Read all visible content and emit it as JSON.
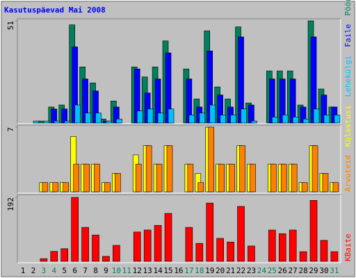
{
  "chart_data": [
    {
      "type": "bar",
      "title": "Kasutuspäevad Mai 2008",
      "ylim": [
        0,
        51
      ],
      "yticks": [
        51
      ],
      "series": [
        {
          "name": "Pöördumisi",
          "color": "#00805c",
          "values": [
            0,
            0,
            1,
            8,
            9,
            49,
            28,
            20,
            2,
            11,
            0,
            28,
            23,
            28,
            41,
            0,
            27,
            12,
            46,
            18,
            12,
            48,
            10,
            0,
            26,
            26,
            26,
            9,
            51,
            17,
            8
          ]
        },
        {
          "name": "Faile",
          "color": "#0000ff",
          "values": [
            0,
            0,
            0,
            7,
            7,
            38,
            22,
            16,
            1,
            8,
            0,
            27,
            15,
            22,
            35,
            0,
            22,
            8,
            36,
            14,
            8,
            43,
            9,
            0,
            22,
            22,
            22,
            8,
            43,
            14,
            8
          ]
        },
        {
          "name": "Lehekülgi",
          "color": "#00c0ff",
          "values": [
            0,
            1,
            1,
            1,
            1,
            9,
            5,
            5,
            1,
            2,
            0,
            6,
            7,
            5,
            7,
            0,
            4,
            5,
            9,
            4,
            4,
            7,
            1,
            0,
            3,
            4,
            3,
            2,
            7,
            4,
            4
          ]
        }
      ]
    },
    {
      "type": "bar",
      "ylim": [
        0,
        7
      ],
      "yticks": [
        7
      ],
      "series": [
        {
          "name": "Külastusi",
          "color": "#ffff00",
          "values": [
            0,
            0,
            1,
            1,
            1,
            6,
            3,
            3,
            1,
            2,
            0,
            4,
            5,
            3,
            5,
            0,
            3,
            2,
            7,
            3,
            3,
            5,
            3,
            0,
            3,
            3,
            3,
            1,
            5,
            2,
            1
          ]
        },
        {
          "name": "Arvuteid",
          "color": "#ff8000",
          "values": [
            0,
            0,
            1,
            1,
            1,
            3,
            3,
            3,
            1,
            2,
            0,
            3,
            5,
            3,
            5,
            0,
            3,
            1,
            7,
            3,
            3,
            5,
            3,
            0,
            3,
            3,
            3,
            1,
            5,
            2,
            1
          ]
        }
      ]
    },
    {
      "type": "bar",
      "ylim": [
        0,
        192
      ],
      "yticks": [
        192
      ],
      "categories": [
        "1",
        "2",
        "3",
        "4",
        "5",
        "6",
        "7",
        "8",
        "9",
        "10",
        "11",
        "12",
        "13",
        "14",
        "15",
        "16",
        "17",
        "18",
        "19",
        "20",
        "21",
        "22",
        "23",
        "24",
        "25",
        "26",
        "27",
        "28",
        "29",
        "30",
        "31"
      ],
      "category_colors": [
        "#000000",
        "#000000",
        "#00805c",
        "#00805c",
        "#000000",
        "#000000",
        "#000000",
        "#000000",
        "#000000",
        "#00805c",
        "#00805c",
        "#000000",
        "#000000",
        "#000000",
        "#000000",
        "#000000",
        "#00805c",
        "#00805c",
        "#000000",
        "#000000",
        "#000000",
        "#000000",
        "#000000",
        "#00805c",
        "#00805c",
        "#000000",
        "#000000",
        "#000000",
        "#000000",
        "#000000",
        "#00805c"
      ],
      "series": [
        {
          "name": "KBaite",
          "color": "#ff0000",
          "values": [
            0,
            0,
            8,
            30,
            38,
            192,
            102,
            79,
            15,
            48,
            0,
            88,
            94,
            108,
            144,
            0,
            102,
            54,
            175,
            69,
            58,
            165,
            46,
            0,
            94,
            83,
            94,
            29,
            183,
            63,
            29
          ]
        }
      ]
    }
  ]
}
